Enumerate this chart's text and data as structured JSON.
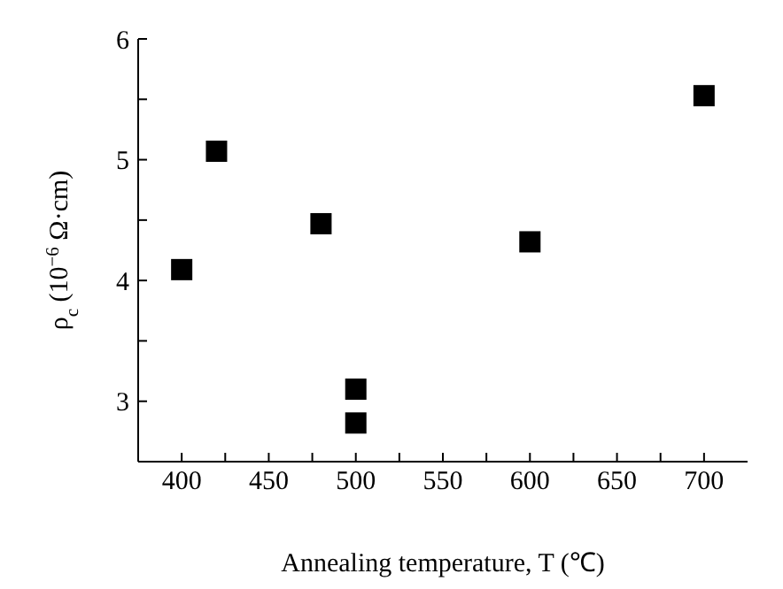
{
  "chart_data": {
    "type": "scatter",
    "xlabel": "Annealing temperature, T (℃)",
    "ylabel": "ρ$_{c}$ (10$^{−6}$ Ω·cm)",
    "x": [
      400,
      420,
      480,
      500,
      500,
      600,
      700
    ],
    "series": [
      {
        "color": "#000000",
        "values": [
          4.09,
          5.07,
          4.47,
          3.1,
          2.82,
          4.32,
          5.53
        ]
      }
    ],
    "marker": "square",
    "xlim": [
      375,
      725
    ],
    "xticks": [
      400,
      {
        "value": 425,
        "label": null
      },
      450,
      {
        "value": 475,
        "label": null
      },
      500,
      {
        "value": 525,
        "label": null
      },
      550,
      {
        "value": 575,
        "label": null
      },
      600,
      {
        "value": 625,
        "label": null
      },
      650,
      {
        "value": 675,
        "label": null
      },
      700
    ],
    "ylim": [
      2.5,
      6
    ],
    "yticks": [
      {
        "value": 2.5,
        "label": null
      },
      3,
      {
        "value": 3.5,
        "label": null
      },
      4,
      {
        "value": 4.5,
        "label": null
      },
      5,
      {
        "value": 5.5,
        "label": null
      },
      6
    ],
    "grid": false,
    "legend": false
  }
}
